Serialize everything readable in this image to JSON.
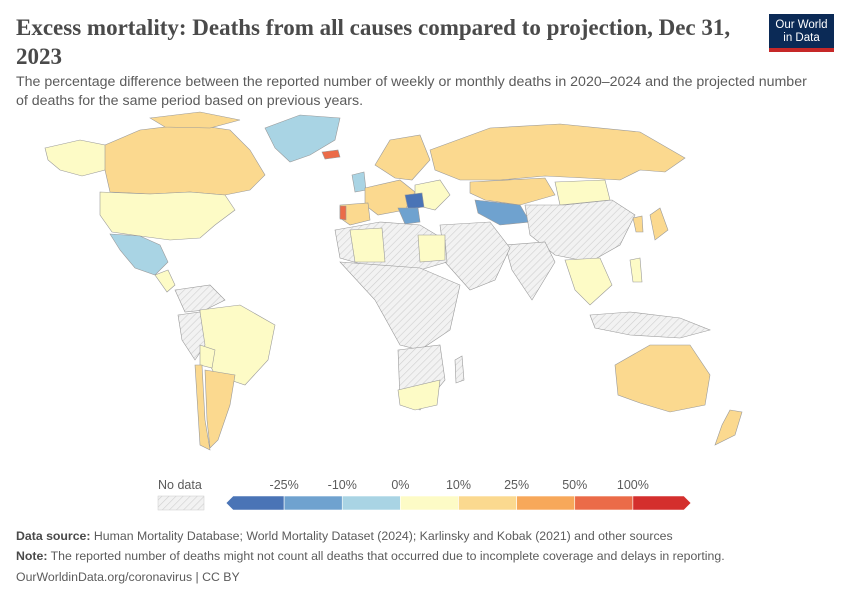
{
  "header": {
    "title": "Excess mortality: Deaths from all causes compared to projection, Dec 31, 2023",
    "subtitle": "The percentage difference between the reported number of weekly or monthly deaths in 2020–2024 and the projected number of deaths for the same period based on previous years.",
    "logo_line1": "Our World",
    "logo_line2": "in Data"
  },
  "legend": {
    "no_data_label": "No data",
    "ticks": [
      "-25%",
      "-10%",
      "0%",
      "10%",
      "25%",
      "50%",
      "100%"
    ],
    "bins": [
      {
        "range": "< -25%",
        "color": "#4a74b6"
      },
      {
        "range": "-25% to -10%",
        "color": "#6fa2cf"
      },
      {
        "range": "-10% to 0%",
        "color": "#a9d4e4"
      },
      {
        "range": "0% to 10%",
        "color": "#fdfbc6"
      },
      {
        "range": "10% to 25%",
        "color": "#fbd98f"
      },
      {
        "range": "25% to 50%",
        "color": "#f7a85a"
      },
      {
        "range": "50% to 100%",
        "color": "#eb6b48"
      },
      {
        "range": "> 100%",
        "color": "#d42f2d"
      }
    ],
    "no_data_color": "#eeeeee"
  },
  "footer": {
    "source_label": "Data source:",
    "source_text": "Human Mortality Database; World Mortality Dataset (2024); Karlinsky and Kobak (2021) and other sources",
    "note_label": "Note:",
    "note_text": "The reported number of deaths might not count all deaths that occurred due to incomplete coverage and delays in reporting.",
    "credit": "OurWorldinData.org/coronavirus | CC BY"
  }
}
